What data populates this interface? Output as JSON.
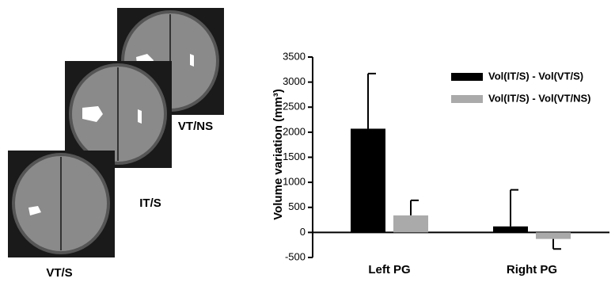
{
  "panel_labels": [
    "VT/NS",
    "IT/S",
    "VT/S"
  ],
  "chart_data": {
    "type": "bar",
    "y_label": "Volume variation (mm³)",
    "categories": [
      "Left PG",
      "Right PG"
    ],
    "series": [
      {
        "name": "Vol(IT/S) - Vol(VT/S)",
        "color": "#000000",
        "values": [
          2070,
          120
        ],
        "errors": [
          1100,
          730
        ]
      },
      {
        "name": "Vol(IT/S) - Vol(VT/NS)",
        "color": "#aaaaaa",
        "values": [
          340,
          -130
        ],
        "errors": [
          300,
          200
        ]
      }
    ],
    "ylim": [
      -500,
      3500
    ],
    "yticks": [
      -500,
      0,
      500,
      1000,
      1500,
      2000,
      2500,
      3000,
      3500
    ],
    "grid": false,
    "legend": "top-right"
  }
}
